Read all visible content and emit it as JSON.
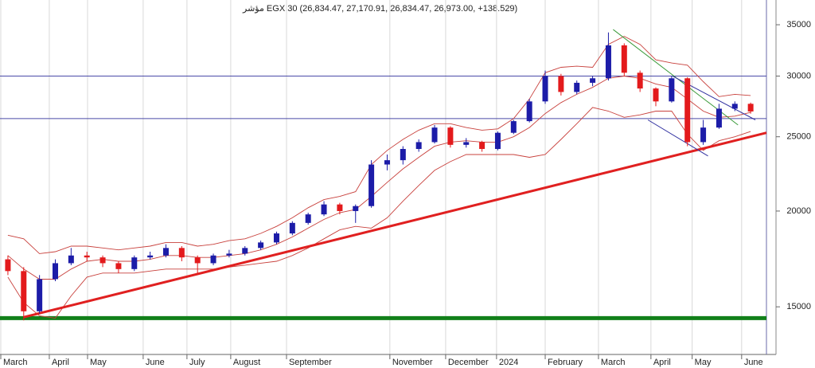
{
  "chart_data": {
    "type": "candlestick",
    "title": "مؤشر EGX 30 (26,834.47, 27,170.91, 26,834.47, 26,973.00, +138.529)",
    "log_scale": true,
    "xgrid": true,
    "up_color": "#1c1ca8",
    "down_color": "#e31a1c",
    "open": [
      17300,
      16700,
      14800,
      16300,
      17100,
      17500,
      17400,
      17100,
      16800,
      17400,
      17500,
      17900,
      17400,
      17100,
      17500,
      17600,
      17900,
      18200,
      18700,
      19300,
      19800,
      20400,
      20000,
      20300,
      23000,
      23300,
      24100,
      24600,
      25700,
      24400,
      24600,
      24100,
      25300,
      26200,
      27800,
      30000,
      28600,
      29400,
      29800,
      32900,
      30300,
      28900,
      27800,
      29800,
      24600,
      25700,
      27200,
      27600
    ],
    "high": [
      17500,
      16900,
      16500,
      17300,
      17900,
      17700,
      17500,
      17200,
      17500,
      17700,
      18100,
      18000,
      17500,
      17600,
      17800,
      18000,
      18300,
      18800,
      19400,
      19900,
      20600,
      20500,
      20400,
      23300,
      23700,
      24300,
      24800,
      25900,
      25800,
      24900,
      24700,
      25400,
      26300,
      28000,
      30500,
      30200,
      29600,
      30000,
      34200,
      33100,
      30500,
      29000,
      30000,
      29900,
      26300,
      27600,
      27800,
      27700
    ],
    "low": [
      16500,
      14400,
      14700,
      16200,
      17000,
      17200,
      16900,
      16600,
      16700,
      17300,
      17400,
      17200,
      16500,
      17000,
      17400,
      17500,
      17800,
      18100,
      18600,
      19200,
      19700,
      19800,
      19300,
      20200,
      22600,
      23000,
      23900,
      24500,
      24200,
      24200,
      23900,
      24000,
      25200,
      26100,
      27600,
      28300,
      28400,
      29100,
      29600,
      30000,
      28600,
      27400,
      27700,
      24300,
      24400,
      25600,
      27000,
      26800
    ],
    "close": [
      16700,
      14800,
      16300,
      17100,
      17500,
      17400,
      17100,
      16800,
      17400,
      17500,
      17900,
      17400,
      17100,
      17500,
      17600,
      17900,
      18200,
      18700,
      19300,
      19800,
      20400,
      20000,
      20300,
      23000,
      23300,
      24100,
      24600,
      25700,
      24400,
      24600,
      24100,
      25300,
      26200,
      27800,
      30000,
      28600,
      29400,
      29800,
      32900,
      30300,
      28900,
      27800,
      29800,
      24600,
      25700,
      27200,
      27600,
      26973
    ],
    "bands": {
      "color": "#c8403c",
      "upper": [
        18600,
        18400,
        17600,
        17700,
        18000,
        18000,
        17900,
        17800,
        17900,
        18000,
        18200,
        18200,
        18000,
        18100,
        18300,
        18400,
        18700,
        19100,
        19600,
        20200,
        20700,
        20900,
        21200,
        23000,
        24000,
        24800,
        25500,
        26000,
        26000,
        25700,
        25500,
        25600,
        26400,
        28000,
        30300,
        30800,
        30900,
        30800,
        33000,
        33800,
        33000,
        31500,
        31200,
        31000,
        29500,
        28200,
        28400,
        28300
      ],
      "middle": [
        17500,
        16800,
        16300,
        16300,
        16800,
        17200,
        17300,
        17200,
        17200,
        17300,
        17500,
        17500,
        17400,
        17400,
        17500,
        17600,
        17800,
        18100,
        18500,
        19000,
        19500,
        19900,
        20100,
        20900,
        21800,
        22700,
        23500,
        24300,
        24600,
        24700,
        24600,
        24600,
        25000,
        25700,
        26800,
        27700,
        28400,
        29000,
        29800,
        30000,
        29800,
        29300,
        29000,
        28000,
        27000,
        26500,
        26600,
        26900
      ],
      "lower": [
        16400,
        15200,
        14600,
        14500,
        15500,
        16400,
        16600,
        16600,
        16600,
        16700,
        16800,
        16800,
        16800,
        16800,
        16900,
        17000,
        17100,
        17200,
        17500,
        17900,
        18400,
        18900,
        19100,
        19000,
        19600,
        20600,
        21600,
        22600,
        23200,
        23700,
        23700,
        23700,
        23700,
        23500,
        23700,
        24800,
        26000,
        27300,
        27000,
        26500,
        26700,
        27000,
        27000,
        25200,
        24000,
        24700,
        25000,
        25400
      ]
    },
    "hlines": [
      {
        "value": 30000,
        "color": "#4a4aa8",
        "width": 1
      },
      {
        "value": 26400,
        "color": "#4a4aa8",
        "width": 1
      },
      {
        "value": 14500,
        "color": "#12801a",
        "width": 5
      }
    ],
    "lines": [
      {
        "x": [
          1.0,
          48
        ],
        "y": [
          14540,
          25300
        ],
        "color": "#e02020",
        "width": 3
      },
      {
        "x": [
          38.3,
          46.2
        ],
        "y": [
          34500,
          25900
        ],
        "color": "#3a9a3a",
        "width": 1
      },
      {
        "x": [
          40.5,
          44.3
        ],
        "y": [
          26300,
          23600
        ],
        "color": "#3030a0",
        "width": 1
      },
      {
        "x": [
          42.05,
          47.3
        ],
        "y": [
          30000,
          26300
        ],
        "color": "#3030a0",
        "width": 1
      }
    ],
    "xlim": [
      -0.5,
      48
    ],
    "ylim": [
      13000,
      37700
    ],
    "yticks": [
      15000,
      20000,
      25000,
      30000,
      35000
    ],
    "xticks": [
      {
        "value": -0.45,
        "label": "March"
      },
      {
        "value": 2.62,
        "label": "April"
      },
      {
        "value": 5.04,
        "label": "May"
      },
      {
        "value": 8.56,
        "label": "June"
      },
      {
        "value": 11.33,
        "label": "July"
      },
      {
        "value": 14.1,
        "label": "August"
      },
      {
        "value": 17.63,
        "label": "September"
      },
      {
        "value": 24.17,
        "label": "November"
      },
      {
        "value": 27.7,
        "label": "December"
      },
      {
        "value": 30.92,
        "label": "2024"
      },
      {
        "value": 34.0,
        "label": "February"
      },
      {
        "value": 37.37,
        "label": "March"
      },
      {
        "value": 40.69,
        "label": "April"
      },
      {
        "value": 43.3,
        "label": "May"
      },
      {
        "value": 46.43,
        "label": "June"
      }
    ]
  }
}
